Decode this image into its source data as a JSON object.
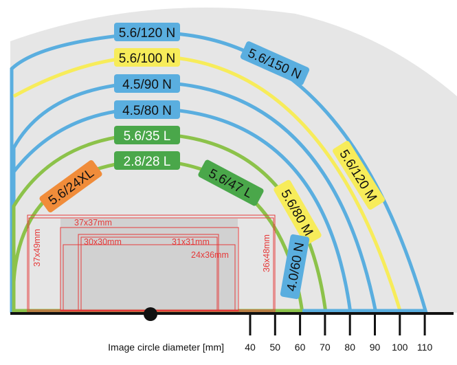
{
  "colors": {
    "background_fan": "#e6e6e6",
    "blue": "#5aaedf",
    "yellow": "#f7ec5a",
    "green": "#8cc24a",
    "dark_green": "#4aa74a",
    "orange": "#f08c3a",
    "format_red": "#e53a3a",
    "format_fill": "#cdcdcd",
    "axis": "#111111"
  },
  "axis": {
    "title": "Image circle diameter [mm]",
    "ticks": [
      "40",
      "50",
      "60",
      "70",
      "80",
      "90",
      "100",
      "110"
    ]
  },
  "lenses": [
    {
      "label": "5.6/120 N",
      "diameter": 110,
      "color": "blue"
    },
    {
      "label": "5.6/100 N",
      "diameter": 100,
      "color": "yellow"
    },
    {
      "label": "4.5/90 N",
      "diameter": 90,
      "color": "blue"
    },
    {
      "label": "4.5/80 N",
      "diameter": 80,
      "color": "blue"
    },
    {
      "label": "5.6/35 L",
      "diameter": 70,
      "color": "green"
    },
    {
      "label": "2.8/28 L",
      "diameter": 60,
      "color": "green"
    },
    {
      "label": "5.6/150 N",
      "diameter": 110,
      "color": "blue"
    },
    {
      "label": "5.6/120 M",
      "diameter": 100,
      "color": "yellow"
    },
    {
      "label": "5.6/47 L",
      "diameter": 60,
      "color": "green"
    },
    {
      "label": "5.6/24XL",
      "diameter": 60,
      "color": "orange"
    },
    {
      "label": "5.6/80 M",
      "diameter": 70,
      "color": "yellow"
    },
    {
      "label": "4.0/60 N",
      "diameter": 60,
      "color": "blue"
    }
  ],
  "formats": [
    {
      "label": "37x49mm"
    },
    {
      "label": "37x37mm"
    },
    {
      "label": "30x30mm"
    },
    {
      "label": "31x31mm"
    },
    {
      "label": "24x36mm"
    },
    {
      "label": "36x48mm"
    }
  ]
}
